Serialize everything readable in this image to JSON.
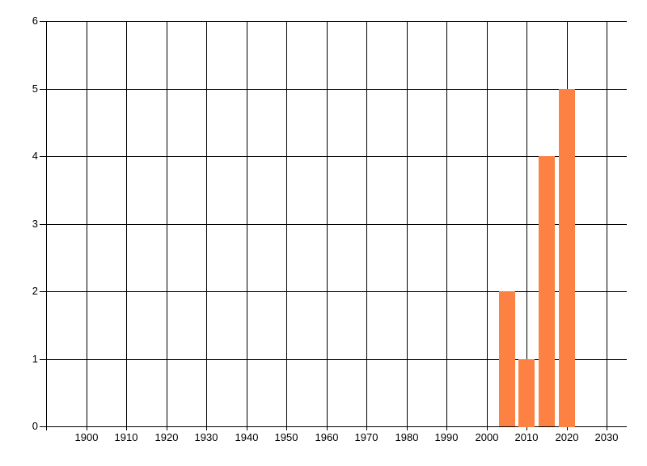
{
  "page": {
    "background_color": "#ffffff",
    "title": ""
  },
  "chart_data": {
    "type": "bar",
    "title": "",
    "xlabel": "",
    "ylabel": "",
    "categories": [
      2005,
      2010,
      2015,
      2020
    ],
    "values": [
      2,
      1,
      4,
      5
    ],
    "bar_width_years": 4,
    "xlim": [
      1890,
      2035
    ],
    "ylim": [
      0,
      6
    ],
    "x_tick_years": [
      1890,
      1900,
      1910,
      1920,
      1930,
      1940,
      1950,
      1960,
      1970,
      1980,
      1990,
      2000,
      2010,
      2020,
      2030
    ],
    "x_tick_labels": [
      "",
      "1900",
      "1910",
      "1920",
      "1930",
      "1940",
      "1950",
      "1960",
      "1970",
      "1980",
      "1990",
      "2000",
      "2010",
      "2020",
      "2030"
    ],
    "y_tick_values": [
      0,
      1,
      2,
      3,
      4,
      5,
      6
    ],
    "y_tick_labels": [
      "0",
      "1",
      "2",
      "3",
      "4",
      "5",
      "6"
    ],
    "grid": "on",
    "legend_position": "none",
    "bar_color": "#fd8142",
    "grid_color": "#000000",
    "tick_label_color": "#000000"
  }
}
